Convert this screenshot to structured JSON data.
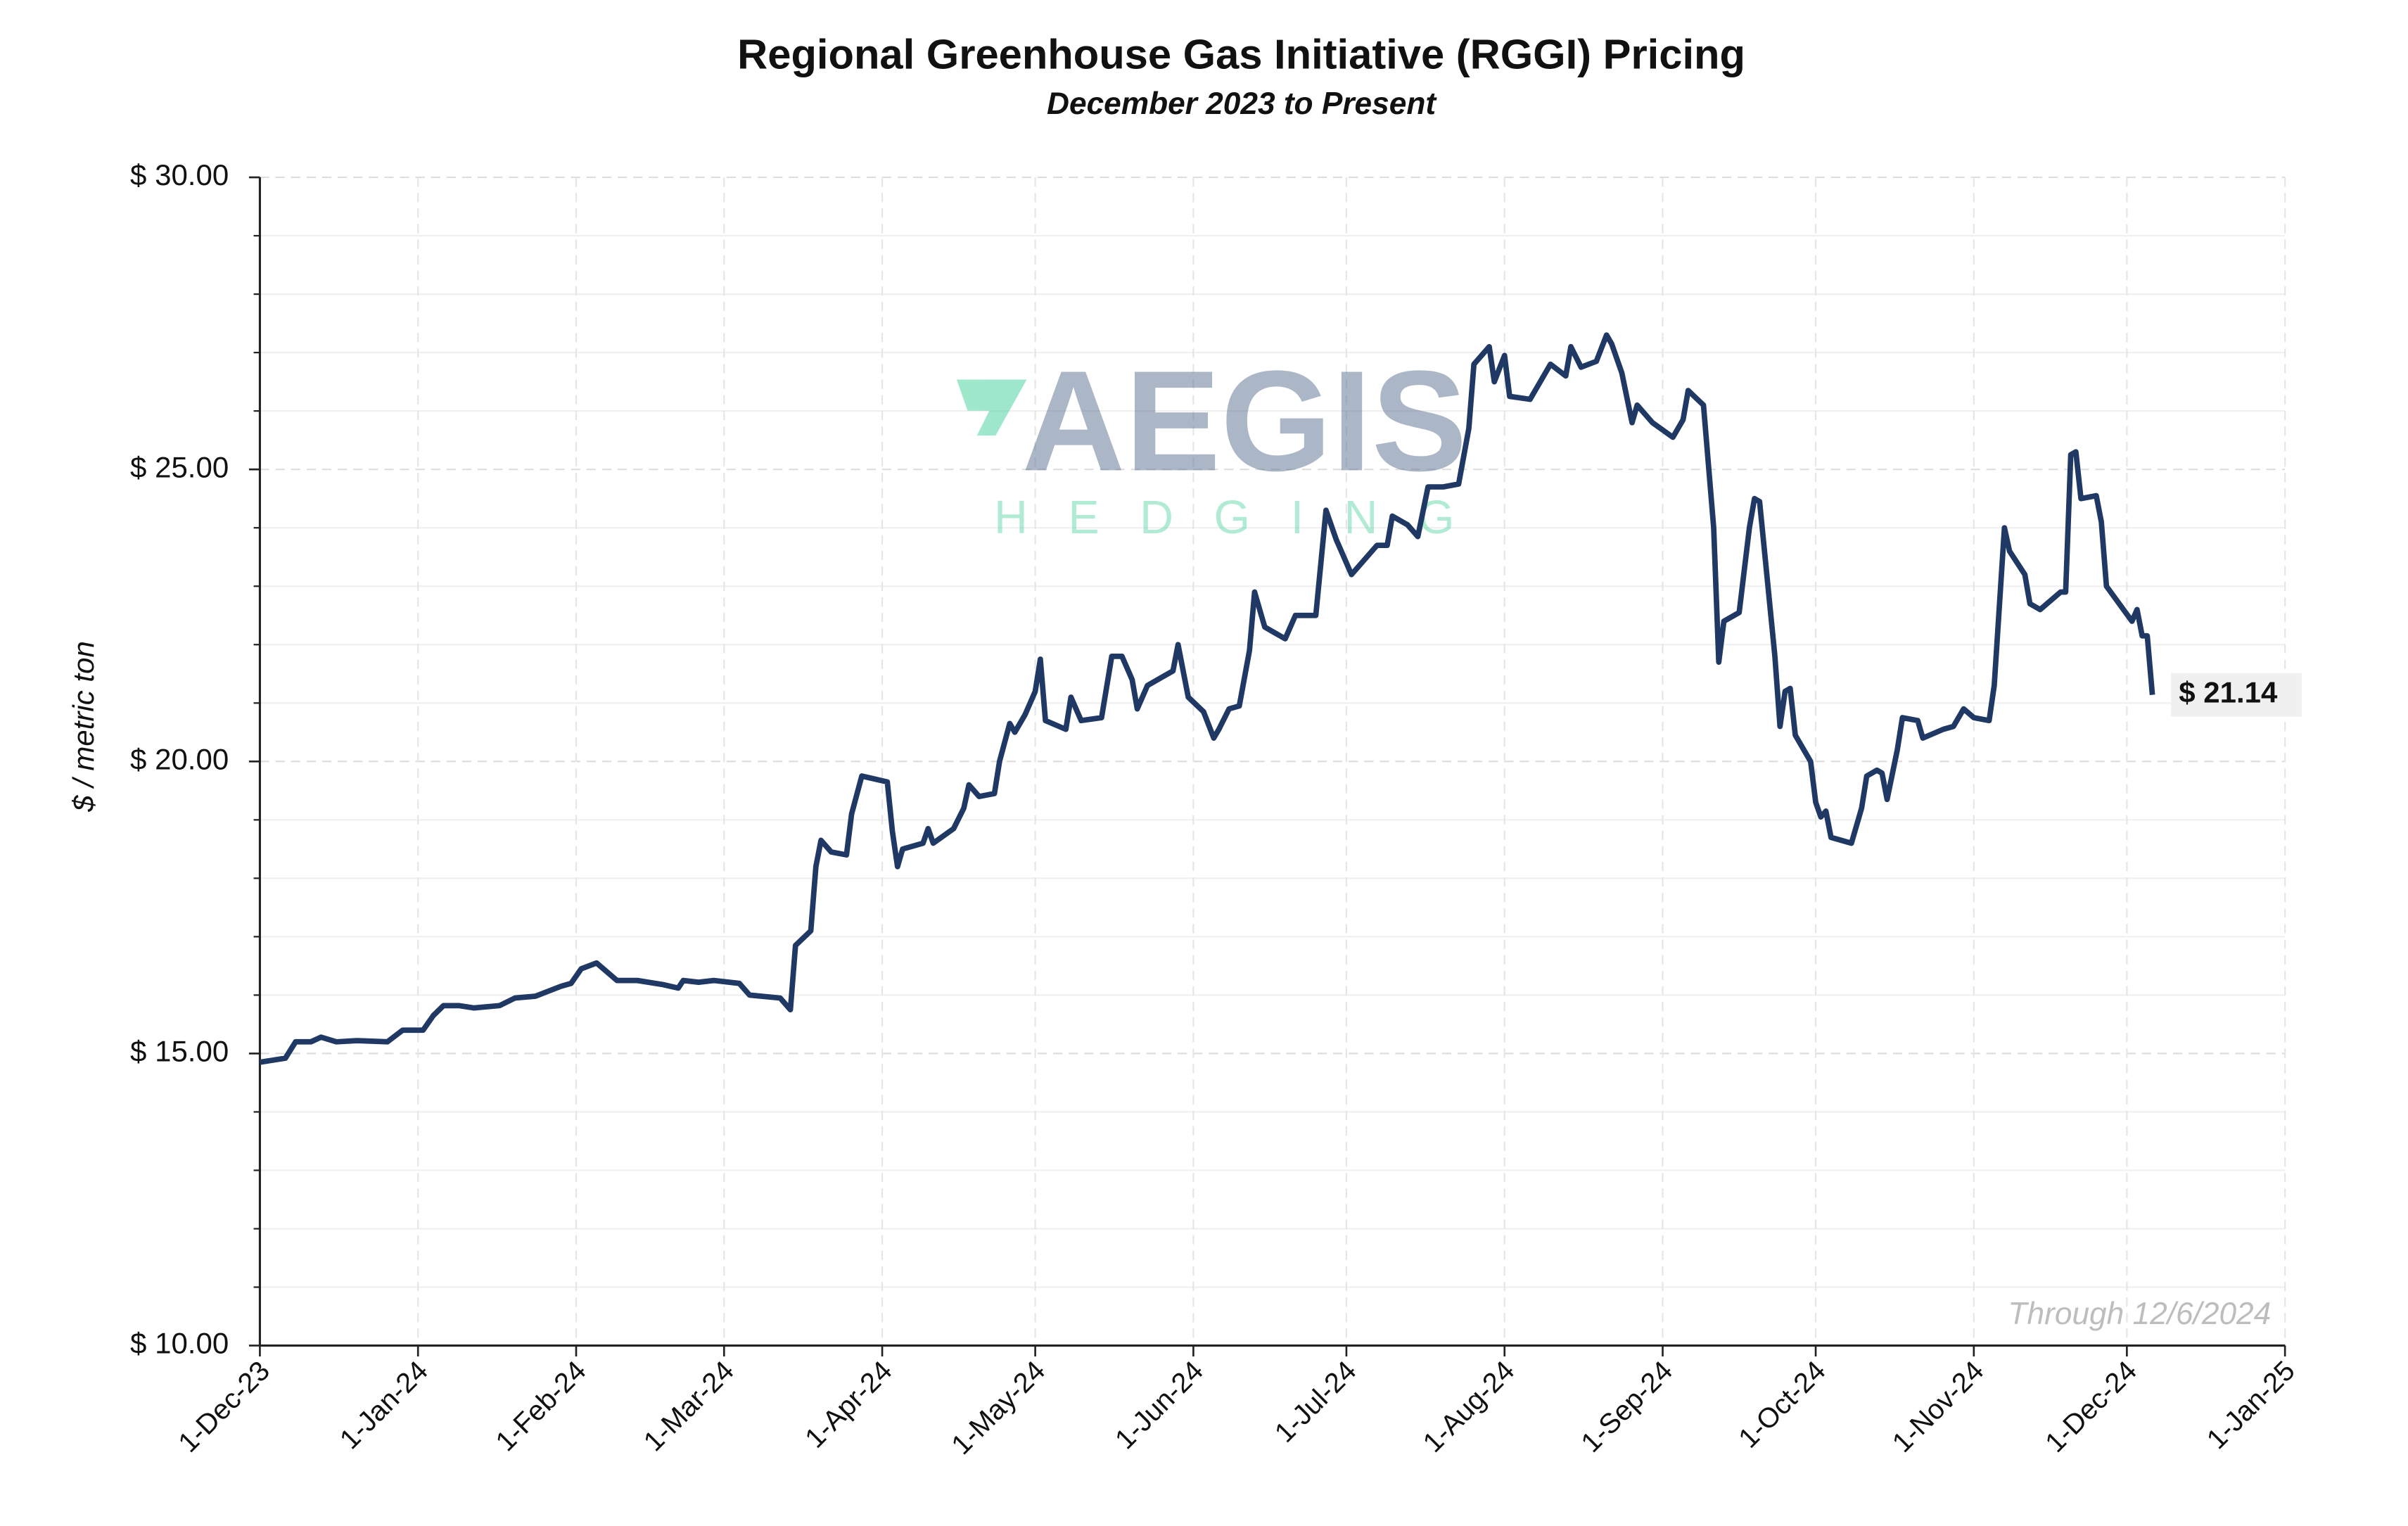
{
  "chart_data": {
    "type": "line",
    "title": "Regional Greenhouse Gas Initiative (RGGI) Pricing",
    "subtitle": "December 2023 to Present",
    "y_label": "$ / metric ton",
    "note": "Through 12/6/2024",
    "watermark": {
      "title": "AEGIS",
      "subtitle": "HEDGING"
    },
    "color": "#1f3864",
    "grid": true,
    "x": [
      "2023-12-01",
      "2023-12-06",
      "2023-12-08",
      "2023-12-11",
      "2023-12-13",
      "2023-12-16",
      "2023-12-20",
      "2023-12-26",
      "2023-12-29",
      "2024-01-02",
      "2024-01-04",
      "2024-01-06",
      "2024-01-09",
      "2024-01-12",
      "2024-01-17",
      "2024-01-20",
      "2024-01-24",
      "2024-01-29",
      "2024-01-31",
      "2024-02-02",
      "2024-02-05",
      "2024-02-09",
      "2024-02-13",
      "2024-02-18",
      "2024-02-21",
      "2024-02-22",
      "2024-02-25",
      "2024-02-28",
      "2024-03-04",
      "2024-03-06",
      "2024-03-12",
      "2024-03-14",
      "2024-03-15",
      "2024-03-18",
      "2024-03-19",
      "2024-03-20",
      "2024-03-22",
      "2024-03-25",
      "2024-03-26",
      "2024-03-28",
      "2024-04-02",
      "2024-04-03",
      "2024-04-04",
      "2024-04-05",
      "2024-04-09",
      "2024-04-10",
      "2024-04-11",
      "2024-04-15",
      "2024-04-17",
      "2024-04-18",
      "2024-04-20",
      "2024-04-23",
      "2024-04-24",
      "2024-04-26",
      "2024-04-27",
      "2024-04-29",
      "2024-05-01",
      "2024-05-02",
      "2024-05-03",
      "2024-05-07",
      "2024-05-08",
      "2024-05-10",
      "2024-05-14",
      "2024-05-16",
      "2024-05-18",
      "2024-05-20",
      "2024-05-21",
      "2024-05-23",
      "2024-05-26",
      "2024-05-28",
      "2024-05-29",
      "2024-05-31",
      "2024-06-03",
      "2024-06-05",
      "2024-06-06",
      "2024-06-08",
      "2024-06-10",
      "2024-06-12",
      "2024-06-13",
      "2024-06-15",
      "2024-06-17",
      "2024-06-19",
      "2024-06-21",
      "2024-06-25",
      "2024-06-26",
      "2024-06-27",
      "2024-06-29",
      "2024-07-02",
      "2024-07-07",
      "2024-07-09",
      "2024-07-10",
      "2024-07-13",
      "2024-07-15",
      "2024-07-17",
      "2024-07-20",
      "2024-07-23",
      "2024-07-25",
      "2024-07-26",
      "2024-07-29",
      "2024-07-30",
      "2024-08-01",
      "2024-08-02",
      "2024-08-06",
      "2024-08-08",
      "2024-08-10",
      "2024-08-13",
      "2024-08-14",
      "2024-08-16",
      "2024-08-19",
      "2024-08-21",
      "2024-08-22",
      "2024-08-24",
      "2024-08-26",
      "2024-08-27",
      "2024-08-30",
      "2024-09-03",
      "2024-09-05",
      "2024-09-06",
      "2024-09-09",
      "2024-09-11",
      "2024-09-12",
      "2024-09-13",
      "2024-09-16",
      "2024-09-18",
      "2024-09-19",
      "2024-09-20",
      "2024-09-23",
      "2024-09-24",
      "2024-09-25",
      "2024-09-26",
      "2024-09-27",
      "2024-09-30",
      "2024-10-01",
      "2024-10-02",
      "2024-10-03",
      "2024-10-04",
      "2024-10-08",
      "2024-10-10",
      "2024-10-11",
      "2024-10-13",
      "2024-10-14",
      "2024-10-15",
      "2024-10-17",
      "2024-10-18",
      "2024-10-21",
      "2024-10-22",
      "2024-10-26",
      "2024-10-28",
      "2024-10-30",
      "2024-11-01",
      "2024-11-04",
      "2024-11-05",
      "2024-11-07",
      "2024-11-08",
      "2024-11-11",
      "2024-11-12",
      "2024-11-14",
      "2024-11-18",
      "2024-11-19",
      "2024-11-20",
      "2024-11-21",
      "2024-11-22",
      "2024-11-25",
      "2024-11-26",
      "2024-11-27",
      "2024-12-02",
      "2024-12-03",
      "2024-12-04",
      "2024-12-05",
      "2024-12-06"
    ],
    "values": [
      14.85,
      14.92,
      15.2,
      15.2,
      15.28,
      15.2,
      15.22,
      15.2,
      15.4,
      15.4,
      15.65,
      15.82,
      15.82,
      15.78,
      15.82,
      15.95,
      15.98,
      16.15,
      16.2,
      16.45,
      16.55,
      16.25,
      16.25,
      16.18,
      16.12,
      16.25,
      16.22,
      16.25,
      16.2,
      16.0,
      15.95,
      15.75,
      16.85,
      17.1,
      18.2,
      18.65,
      18.45,
      18.4,
      19.1,
      19.75,
      19.65,
      18.8,
      18.2,
      18.5,
      18.6,
      18.85,
      18.6,
      18.85,
      19.2,
      19.6,
      19.4,
      19.45,
      20.0,
      20.65,
      20.5,
      20.8,
      21.2,
      21.75,
      20.7,
      20.55,
      21.1,
      20.7,
      20.75,
      21.8,
      21.8,
      21.4,
      20.9,
      21.3,
      21.45,
      21.55,
      22.0,
      21.1,
      20.85,
      20.4,
      20.55,
      20.9,
      20.95,
      21.9,
      22.9,
      22.3,
      22.2,
      22.1,
      22.5,
      22.5,
      23.4,
      24.3,
      23.8,
      23.2,
      23.7,
      23.7,
      24.2,
      24.05,
      23.85,
      24.7,
      24.7,
      24.75,
      25.7,
      26.8,
      27.1,
      26.5,
      26.95,
      26.25,
      26.2,
      26.5,
      26.8,
      26.6,
      27.1,
      26.75,
      26.85,
      27.3,
      27.15,
      26.65,
      25.8,
      26.1,
      25.8,
      25.55,
      25.85,
      26.35,
      26.1,
      24.0,
      21.7,
      22.4,
      22.55,
      24.0,
      24.5,
      24.45,
      21.8,
      20.6,
      21.2,
      21.25,
      20.45,
      20.0,
      19.3,
      19.05,
      19.15,
      18.7,
      18.6,
      19.2,
      19.75,
      19.85,
      19.8,
      19.35,
      20.2,
      20.75,
      20.7,
      20.4,
      20.55,
      20.6,
      20.9,
      20.75,
      20.7,
      21.3,
      24.0,
      23.6,
      23.2,
      22.7,
      22.6,
      22.9,
      22.9,
      25.25,
      25.3,
      24.5,
      24.55,
      24.1,
      23.0,
      22.4,
      22.6,
      22.15,
      22.15,
      21.14
    ],
    "annotations": [
      {
        "x": "2024-12-06",
        "value": 21.14,
        "label": "$ 21.14"
      }
    ],
    "xlim": [
      "2023-12-01",
      "2025-01-01"
    ],
    "xticks": [
      {
        "value": "2023-12-01",
        "label": "1-Dec-23"
      },
      {
        "value": "2024-01-01",
        "label": "1-Jan-24"
      },
      {
        "value": "2024-02-01",
        "label": "1-Feb-24"
      },
      {
        "value": "2024-03-01",
        "label": "1-Mar-24"
      },
      {
        "value": "2024-04-01",
        "label": "1-Apr-24"
      },
      {
        "value": "2024-05-01",
        "label": "1-May-24"
      },
      {
        "value": "2024-06-01",
        "label": "1-Jun-24"
      },
      {
        "value": "2024-07-01",
        "label": "1-Jul-24"
      },
      {
        "value": "2024-08-01",
        "label": "1-Aug-24"
      },
      {
        "value": "2024-09-01",
        "label": "1-Sep-24"
      },
      {
        "value": "2024-10-01",
        "label": "1-Oct-24"
      },
      {
        "value": "2024-11-01",
        "label": "1-Nov-24"
      },
      {
        "value": "2024-12-01",
        "label": "1-Dec-24"
      },
      {
        "value": "2025-01-01",
        "label": "1-Jan-25"
      }
    ],
    "ylim": [
      10,
      30
    ],
    "yticks": [
      {
        "value": 10,
        "label": "$ 10.00"
      },
      {
        "value": 15,
        "label": "$ 15.00"
      },
      {
        "value": 20,
        "label": "$ 20.00"
      },
      {
        "value": 25,
        "label": "$ 25.00"
      },
      {
        "value": 30,
        "label": "$ 30.00"
      }
    ],
    "yminorticks": [
      11,
      12,
      13,
      14,
      16,
      17,
      18,
      19,
      21,
      22,
      23,
      24,
      26,
      27,
      28,
      29
    ]
  }
}
